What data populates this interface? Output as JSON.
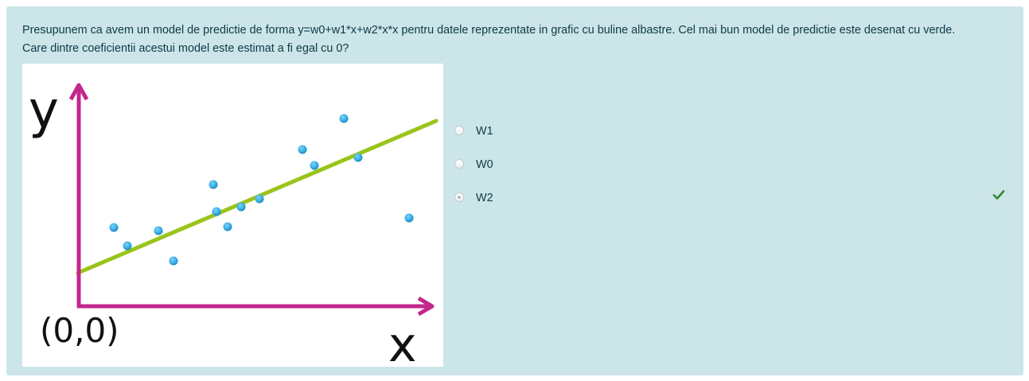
{
  "question": {
    "line1": "Presupunem ca avem un model de predictie de forma y=w0+w1*x+w2*x*x pentru datele reprezentate in grafic cu buline albastre. Cel mai bun model de predictie este desenat cu verde.",
    "line2": "Care dintre coeficientii acestui model este estimat a fi egal cu 0?"
  },
  "figure": {
    "y_label": "y",
    "x_label": "x",
    "origin_label": "(0,0)",
    "axis_color": "#c2278c",
    "fit_line_color": "#9ac41a",
    "point_color": "#35aee6"
  },
  "answers": [
    {
      "label": "W1",
      "selected": false,
      "correct": false
    },
    {
      "label": "W0",
      "selected": false,
      "correct": false
    },
    {
      "label": "W2",
      "selected": true,
      "correct": true
    }
  ],
  "colors": {
    "card_background": "#cce5e9",
    "text": "#0d3a45",
    "correct_check": "#2e8a2e"
  },
  "icons": {
    "correct_marker": "check-icon"
  }
}
